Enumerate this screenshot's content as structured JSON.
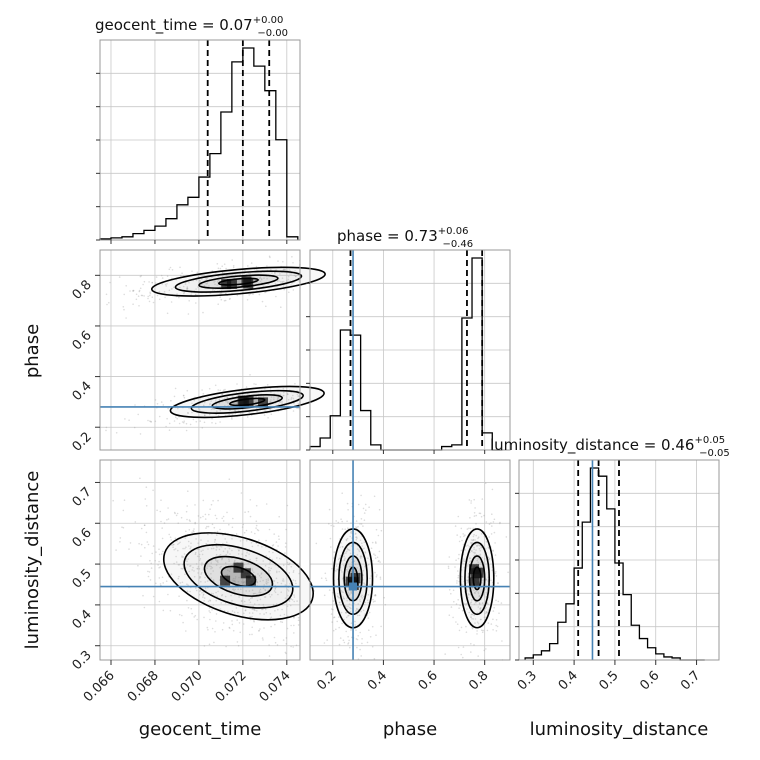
{
  "chart_data": {
    "type": "corner",
    "parameters": [
      "geocent_time",
      "phase",
      "luminosity_distance"
    ],
    "truths": {
      "phase": 0.28,
      "luminosity_distance": 0.445
    },
    "colors": {
      "hist": "#000000",
      "truth": "#4682b4",
      "grid": "#c8c8c8",
      "frame": "#999999",
      "points": "#9a9a9a"
    },
    "titles": [
      {
        "param": "geocent_time",
        "prefix": "geocent_time = ",
        "value": "0.07",
        "plus": "+0.00",
        "minus": "−0.00"
      },
      {
        "param": "phase",
        "prefix": "phase = ",
        "value": "0.73",
        "plus": "+0.06",
        "minus": "−0.46"
      },
      {
        "param": "luminosity_distance",
        "prefix": "luminosity_distance = ",
        "value": "0.46",
        "plus": "+0.05",
        "minus": "−0.05"
      }
    ],
    "axes": {
      "geocent_time": {
        "range": [
          0.0655,
          0.0746
        ],
        "ticks": [
          0.066,
          0.068,
          0.07,
          0.072,
          0.074
        ],
        "tick_labels": [
          "0.066",
          "0.068",
          "0.070",
          "0.072",
          "0.074"
        ],
        "label": "geocent_time"
      },
      "phase": {
        "range": [
          0.11,
          0.9
        ],
        "ticks": [
          0.2,
          0.4,
          0.6,
          0.8
        ],
        "tick_labels": [
          "0.2",
          "0.4",
          "0.6",
          "0.8"
        ],
        "label": "phase"
      },
      "luminosity_distance": {
        "range": [
          0.265,
          0.755
        ],
        "ticks": [
          0.3,
          0.4,
          0.5,
          0.6,
          0.7
        ],
        "tick_labels": [
          "0.3",
          "0.4",
          "0.5",
          "0.6",
          "0.7"
        ],
        "label": "luminosity_distance"
      }
    },
    "histograms": [
      {
        "param": "geocent_time",
        "edges": [
          0.0655,
          0.066,
          0.0665,
          0.067,
          0.0675,
          0.068,
          0.0685,
          0.069,
          0.0695,
          0.07,
          0.0705,
          0.071,
          0.0715,
          0.072,
          0.0725,
          0.073,
          0.0735,
          0.074,
          0.0745
        ],
        "counts": [
          1,
          2,
          3,
          6,
          9,
          13,
          20,
          33,
          40,
          59,
          81,
          120,
          167,
          180,
          163,
          140,
          94,
          3
        ],
        "quantile_lines": [
          0.0704,
          0.072,
          0.0732
        ]
      },
      {
        "param": "phase",
        "edges": [
          0.11,
          0.15,
          0.19,
          0.23,
          0.27,
          0.31,
          0.35,
          0.39,
          0.43,
          0.47,
          0.51,
          0.55,
          0.59,
          0.63,
          0.67,
          0.71,
          0.75,
          0.79,
          0.83,
          0.87
        ],
        "counts": [
          2,
          7,
          20,
          70,
          67,
          23,
          3,
          0,
          0,
          0,
          0,
          0,
          0,
          2,
          3,
          77,
          112,
          10,
          0
        ],
        "quantile_lines": [
          0.27,
          0.73,
          0.79
        ]
      },
      {
        "param": "luminosity_distance",
        "edges": [
          0.28,
          0.3,
          0.32,
          0.34,
          0.36,
          0.38,
          0.4,
          0.42,
          0.44,
          0.46,
          0.48,
          0.5,
          0.52,
          0.54,
          0.56,
          0.58,
          0.6,
          0.62,
          0.64,
          0.66,
          0.68,
          0.7,
          0.72
        ],
        "counts": [
          2,
          5,
          9,
          16,
          37,
          55,
          90,
          135,
          188,
          180,
          148,
          95,
          64,
          34,
          21,
          12,
          6,
          3,
          2,
          0,
          0,
          0
        ],
        "quantile_lines": [
          0.41,
          0.46,
          0.51
        ]
      }
    ],
    "joint_distributions": [
      {
        "x": "geocent_time",
        "y": "phase",
        "modes": [
          {
            "cx": 0.0718,
            "cy": 0.775,
            "sx": 0.0018,
            "sy": 0.028,
            "corr": 0.55,
            "weight": 0.55
          },
          {
            "cx": 0.0722,
            "cy": 0.3,
            "sx": 0.0016,
            "sy": 0.03,
            "corr": 0.6,
            "weight": 0.45
          }
        ]
      },
      {
        "x": "geocent_time",
        "y": "luminosity_distance",
        "modes": [
          {
            "cx": 0.0718,
            "cy": 0.47,
            "sx": 0.0016,
            "sy": 0.055,
            "corr": -0.55,
            "weight": 1.0
          }
        ]
      },
      {
        "x": "phase",
        "y": "luminosity_distance",
        "modes": [
          {
            "cx": 0.28,
            "cy": 0.465,
            "sx": 0.035,
            "sy": 0.055,
            "corr": 0.0,
            "weight": 0.5
          },
          {
            "cx": 0.77,
            "cy": 0.465,
            "sx": 0.03,
            "sy": 0.055,
            "corr": 0.0,
            "weight": 0.5
          }
        ]
      }
    ]
  }
}
